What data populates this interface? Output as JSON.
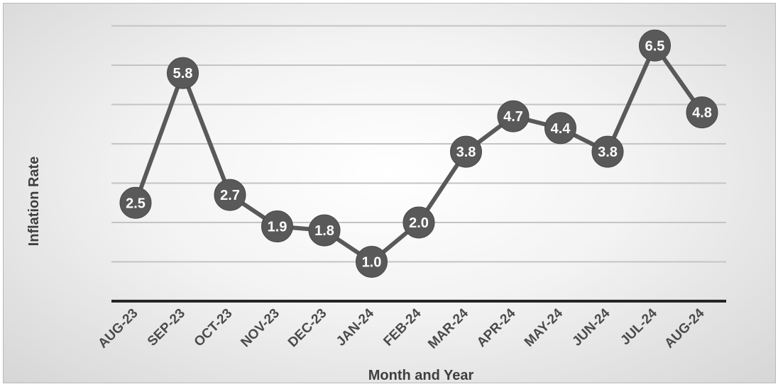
{
  "chart_data": {
    "type": "line",
    "title": "",
    "xlabel": "Month and Year",
    "ylabel": "Inflation Rate",
    "categories": [
      "AUG-23",
      "SEP-23",
      "OCT-23",
      "NOV-23",
      "DEC-23",
      "JAN-24",
      "FEB-24",
      "MAR-24",
      "APR-24",
      "MAY-24",
      "JUN-24",
      "JUL-24",
      "AUG-24"
    ],
    "series": [
      {
        "values": [
          2.5,
          5.8,
          2.7,
          1.9,
          1.8,
          1.0,
          2.0,
          3.8,
          4.7,
          4.4,
          3.8,
          6.5,
          4.8
        ]
      }
    ],
    "data_labels": [
      "2.5",
      "5.8",
      "2.7",
      "1.9",
      "1.8",
      "1.0",
      "2.0",
      "3.8",
      "4.7",
      "4.4",
      "3.8",
      "6.5",
      "4.8"
    ],
    "ylim": [
      0,
      7
    ],
    "grid": true,
    "legend": "none",
    "colors": {
      "line": "#595959",
      "marker": "#595959",
      "marker_text": "#ffffff",
      "gridline": "#c4c4c4",
      "axis": "#262626",
      "text": "#4a4a4a"
    }
  }
}
